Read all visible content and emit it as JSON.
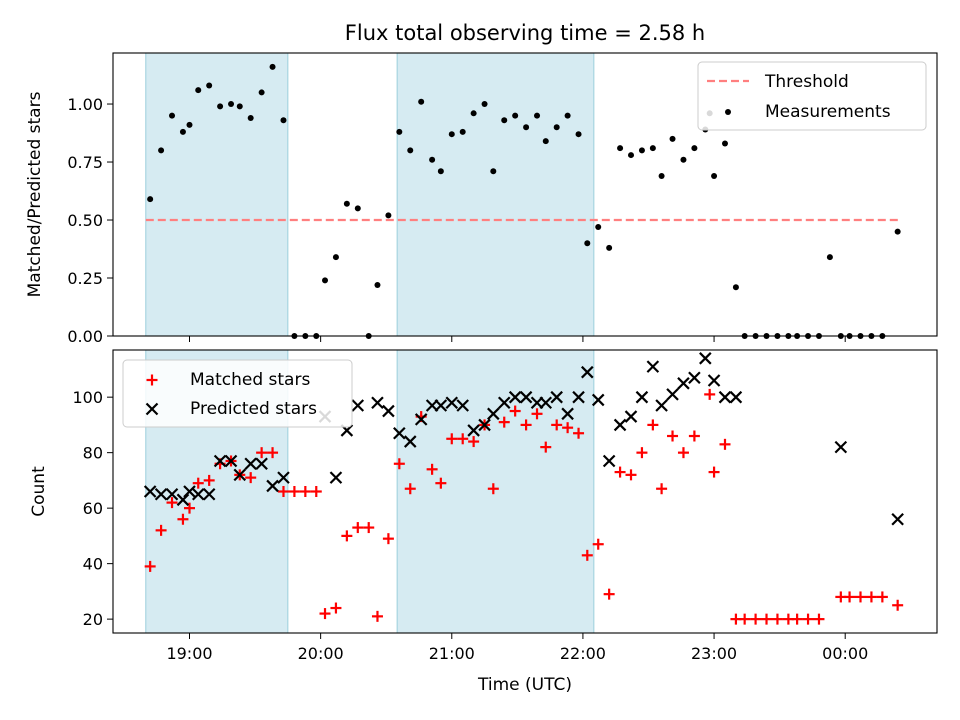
{
  "chart_data": [
    {
      "type": "scatter",
      "title": "Flux total observing time = 2.58 h",
      "xlabel": "",
      "ylabel": "Matched/Predicted stars",
      "ylim": [
        0,
        1.22
      ],
      "xlim": [
        "18:25",
        "00:42"
      ],
      "x_ticks": [
        "19:00",
        "20:00",
        "21:00",
        "22:00",
        "23:00",
        "00:00"
      ],
      "y_ticks": [
        "0.00",
        "0.25",
        "0.50",
        "0.75",
        "1.00"
      ],
      "shaded_intervals": [
        [
          "18:40",
          "19:45"
        ],
        [
          "20:35",
          "22:05"
        ]
      ],
      "threshold": {
        "name": "Threshold",
        "value": 0.5,
        "x_range": [
          "18:40",
          "00:25"
        ],
        "color": "#ff7f7f",
        "style": "dashed"
      },
      "legend": {
        "placement": "top-right",
        "entries": [
          "Threshold",
          "Measurements"
        ]
      },
      "series": [
        {
          "name": "Measurements",
          "marker": "dot",
          "color": "#000000",
          "points": [
            [
              "18:42",
              0.59
            ],
            [
              "18:47",
              0.8
            ],
            [
              "18:52",
              0.95
            ],
            [
              "18:57",
              0.88
            ],
            [
              "19:00",
              0.91
            ],
            [
              "19:04",
              1.06
            ],
            [
              "19:09",
              1.08
            ],
            [
              "19:14",
              0.99
            ],
            [
              "19:19",
              1.0
            ],
            [
              "19:23",
              0.99
            ],
            [
              "19:28",
              0.94
            ],
            [
              "19:33",
              1.05
            ],
            [
              "19:38",
              1.16
            ],
            [
              "19:43",
              0.93
            ],
            [
              "19:48",
              0.0
            ],
            [
              "19:53",
              0.0
            ],
            [
              "19:58",
              0.0
            ],
            [
              "20:02",
              0.24
            ],
            [
              "20:07",
              0.34
            ],
            [
              "20:12",
              0.57
            ],
            [
              "20:17",
              0.55
            ],
            [
              "20:22",
              0.0
            ],
            [
              "20:26",
              0.22
            ],
            [
              "20:31",
              0.52
            ],
            [
              "20:36",
              0.88
            ],
            [
              "20:41",
              0.8
            ],
            [
              "20:46",
              1.01
            ],
            [
              "20:51",
              0.76
            ],
            [
              "20:55",
              0.71
            ],
            [
              "21:00",
              0.87
            ],
            [
              "21:05",
              0.88
            ],
            [
              "21:10",
              0.96
            ],
            [
              "21:15",
              1.0
            ],
            [
              "21:19",
              0.71
            ],
            [
              "21:24",
              0.93
            ],
            [
              "21:29",
              0.95
            ],
            [
              "21:34",
              0.9
            ],
            [
              "21:39",
              0.95
            ],
            [
              "21:43",
              0.84
            ],
            [
              "21:48",
              0.9
            ],
            [
              "21:53",
              0.95
            ],
            [
              "21:58",
              0.87
            ],
            [
              "22:02",
              0.4
            ],
            [
              "22:07",
              0.47
            ],
            [
              "22:12",
              0.38
            ],
            [
              "22:17",
              0.81
            ],
            [
              "22:22",
              0.78
            ],
            [
              "22:27",
              0.8
            ],
            [
              "22:32",
              0.81
            ],
            [
              "22:36",
              0.69
            ],
            [
              "22:41",
              0.85
            ],
            [
              "22:46",
              0.76
            ],
            [
              "22:51",
              0.81
            ],
            [
              "22:56",
              0.89
            ],
            [
              "22:58",
              0.96
            ],
            [
              "23:00",
              0.69
            ],
            [
              "23:05",
              0.83
            ],
            [
              "23:10",
              0.21
            ],
            [
              "23:14",
              0.0
            ],
            [
              "23:19",
              0.0
            ],
            [
              "23:24",
              0.0
            ],
            [
              "23:29",
              0.0
            ],
            [
              "23:34",
              0.0
            ],
            [
              "23:38",
              0.0
            ],
            [
              "23:43",
              0.0
            ],
            [
              "23:48",
              0.0
            ],
            [
              "23:53",
              0.34
            ],
            [
              "23:58",
              0.0
            ],
            [
              "00:02",
              0.0
            ],
            [
              "00:07",
              0.0
            ],
            [
              "00:12",
              0.0
            ],
            [
              "00:17",
              0.0
            ],
            [
              "00:24",
              0.45
            ]
          ]
        }
      ]
    },
    {
      "type": "scatter",
      "title": "",
      "xlabel": "Time (UTC)",
      "ylabel": "Count",
      "ylim": [
        15,
        117
      ],
      "xlim": [
        "18:25",
        "00:42"
      ],
      "x_ticks": [
        "19:00",
        "20:00",
        "21:00",
        "22:00",
        "23:00",
        "00:00"
      ],
      "y_ticks": [
        "20",
        "40",
        "60",
        "80",
        "100"
      ],
      "shaded_intervals": [
        [
          "18:40",
          "19:45"
        ],
        [
          "20:35",
          "22:05"
        ]
      ],
      "legend": {
        "placement": "top-left",
        "entries": [
          "Matched stars",
          "Predicted stars"
        ]
      },
      "series": [
        {
          "name": "Matched stars",
          "marker": "plus",
          "color": "#ff0000",
          "points": [
            [
              "18:42",
              39
            ],
            [
              "18:47",
              52
            ],
            [
              "18:52",
              62
            ],
            [
              "18:57",
              56
            ],
            [
              "19:00",
              60
            ],
            [
              "19:04",
              69
            ],
            [
              "19:09",
              70
            ],
            [
              "19:14",
              76
            ],
            [
              "19:19",
              77
            ],
            [
              "19:23",
              72
            ],
            [
              "19:28",
              71
            ],
            [
              "19:33",
              80
            ],
            [
              "19:38",
              80
            ],
            [
              "19:43",
              66
            ],
            [
              "19:48",
              66
            ],
            [
              "19:53",
              66
            ],
            [
              "19:58",
              66
            ],
            [
              "20:02",
              22
            ],
            [
              "20:07",
              24
            ],
            [
              "20:12",
              50
            ],
            [
              "20:17",
              53
            ],
            [
              "20:22",
              53
            ],
            [
              "20:26",
              21
            ],
            [
              "20:31",
              49
            ],
            [
              "20:36",
              76
            ],
            [
              "20:41",
              67
            ],
            [
              "20:46",
              93
            ],
            [
              "20:51",
              74
            ],
            [
              "20:55",
              69
            ],
            [
              "21:00",
              85
            ],
            [
              "21:05",
              85
            ],
            [
              "21:10",
              84
            ],
            [
              "21:15",
              90
            ],
            [
              "21:19",
              67
            ],
            [
              "21:24",
              91
            ],
            [
              "21:29",
              95
            ],
            [
              "21:34",
              90
            ],
            [
              "21:39",
              94
            ],
            [
              "21:43",
              82
            ],
            [
              "21:48",
              90
            ],
            [
              "21:53",
              89
            ],
            [
              "21:58",
              87
            ],
            [
              "22:02",
              43
            ],
            [
              "22:07",
              47
            ],
            [
              "22:12",
              29
            ],
            [
              "22:17",
              73
            ],
            [
              "22:22",
              72
            ],
            [
              "22:27",
              80
            ],
            [
              "22:32",
              90
            ],
            [
              "22:36",
              67
            ],
            [
              "22:41",
              86
            ],
            [
              "22:46",
              80
            ],
            [
              "22:51",
              86
            ],
            [
              "22:58",
              101
            ],
            [
              "23:00",
              73
            ],
            [
              "23:05",
              83
            ],
            [
              "23:10",
              20
            ],
            [
              "23:14",
              20
            ],
            [
              "23:19",
              20
            ],
            [
              "23:24",
              20
            ],
            [
              "23:29",
              20
            ],
            [
              "23:34",
              20
            ],
            [
              "23:38",
              20
            ],
            [
              "23:43",
              20
            ],
            [
              "23:48",
              20
            ],
            [
              "23:58",
              28
            ],
            [
              "00:02",
              28
            ],
            [
              "00:07",
              28
            ],
            [
              "00:12",
              28
            ],
            [
              "00:17",
              28
            ],
            [
              "00:24",
              25
            ]
          ]
        },
        {
          "name": "Predicted stars",
          "marker": "x",
          "color": "#000000",
          "points": [
            [
              "18:42",
              66
            ],
            [
              "18:47",
              65
            ],
            [
              "18:52",
              65
            ],
            [
              "18:57",
              63
            ],
            [
              "19:00",
              66
            ],
            [
              "19:04",
              65
            ],
            [
              "19:09",
              65
            ],
            [
              "19:14",
              77
            ],
            [
              "19:19",
              77
            ],
            [
              "19:23",
              72
            ],
            [
              "19:28",
              76
            ],
            [
              "19:33",
              76
            ],
            [
              "19:38",
              68
            ],
            [
              "19:43",
              71
            ],
            [
              "20:02",
              93
            ],
            [
              "20:07",
              71
            ],
            [
              "20:12",
              88
            ],
            [
              "20:17",
              97
            ],
            [
              "20:26",
              98
            ],
            [
              "20:31",
              95
            ],
            [
              "20:36",
              87
            ],
            [
              "20:41",
              84
            ],
            [
              "20:46",
              92
            ],
            [
              "20:51",
              97
            ],
            [
              "20:55",
              97
            ],
            [
              "21:00",
              98
            ],
            [
              "21:05",
              97
            ],
            [
              "21:10",
              88
            ],
            [
              "21:15",
              90
            ],
            [
              "21:19",
              94
            ],
            [
              "21:24",
              98
            ],
            [
              "21:29",
              100
            ],
            [
              "21:34",
              100
            ],
            [
              "21:39",
              98
            ],
            [
              "21:43",
              98
            ],
            [
              "21:48",
              100
            ],
            [
              "21:53",
              94
            ],
            [
              "21:58",
              100
            ],
            [
              "22:02",
              109
            ],
            [
              "22:07",
              99
            ],
            [
              "22:12",
              77
            ],
            [
              "22:17",
              90
            ],
            [
              "22:22",
              93
            ],
            [
              "22:27",
              100
            ],
            [
              "22:32",
              111
            ],
            [
              "22:36",
              97
            ],
            [
              "22:41",
              101
            ],
            [
              "22:46",
              105
            ],
            [
              "22:51",
              107
            ],
            [
              "22:56",
              114
            ],
            [
              "23:00",
              106
            ],
            [
              "23:05",
              100
            ],
            [
              "23:10",
              100
            ],
            [
              "23:58",
              82
            ],
            [
              "00:24",
              56
            ]
          ]
        }
      ]
    }
  ]
}
